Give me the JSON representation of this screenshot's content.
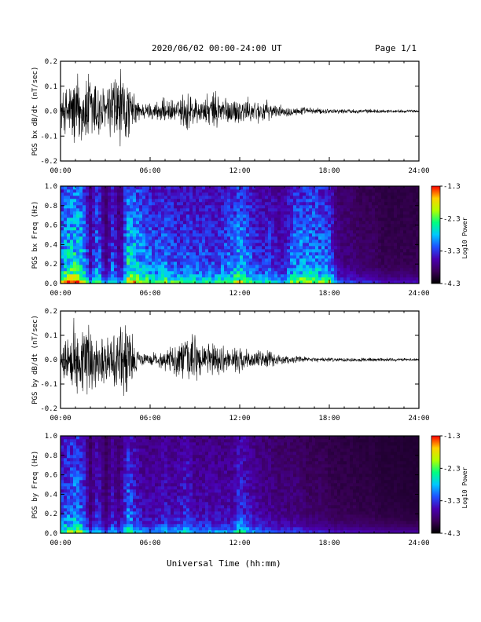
{
  "header": {
    "title": "2020/06/02  00:00-24:00 UT",
    "page": "Page 1/1"
  },
  "footer": {
    "xlabel": "Universal Time (hh:mm)"
  },
  "colors": {
    "spectrogram_scale": [
      "#000000",
      "#3a0058",
      "#4a00b0",
      "#1f4fff",
      "#00c8ff",
      "#00ff80",
      "#b0ff00",
      "#ffd000",
      "#ff0000"
    ]
  },
  "chart_data": [
    {
      "type": "line",
      "ylabel": "PGS bx dB/dt (nT/sec)",
      "xlim": [
        0,
        24
      ],
      "ylim": [
        -0.2,
        0.2
      ],
      "xticks": [
        "00:00",
        "06:00",
        "12:00",
        "18:00",
        "24:00"
      ],
      "yticks": [
        "-0.2",
        "-0.1",
        "0.0",
        "0.1",
        "0.2"
      ],
      "envelope": {
        "t": [
          0,
          0.5,
          1,
          1.5,
          2,
          2.5,
          3,
          3.5,
          4,
          4.5,
          5,
          5.5,
          6,
          6.5,
          7,
          7.5,
          8,
          8.5,
          9,
          9.5,
          10,
          10.5,
          11,
          11.5,
          12,
          12.5,
          13,
          13.5,
          14,
          14.5,
          15,
          16,
          17,
          18,
          19,
          20,
          21,
          22,
          23,
          24
        ],
        "amplitude": [
          0.08,
          0.13,
          0.2,
          0.15,
          0.2,
          0.17,
          0.09,
          0.2,
          0.2,
          0.14,
          0.07,
          0.04,
          0.04,
          0.05,
          0.06,
          0.05,
          0.06,
          0.12,
          0.07,
          0.06,
          0.08,
          0.1,
          0.07,
          0.06,
          0.07,
          0.06,
          0.05,
          0.06,
          0.04,
          0.03,
          0.025,
          0.02,
          0.015,
          0.012,
          0.01,
          0.01,
          0.009,
          0.008,
          0.007,
          0.006
        ]
      }
    },
    {
      "type": "heatmap",
      "ylabel": "PGS bx Freq (Hz)",
      "colorbar_label": "Log10 Power",
      "xlim": [
        0,
        24
      ],
      "ylim": [
        0,
        1
      ],
      "xticks": [
        "00:00",
        "06:00",
        "12:00",
        "18:00",
        "24:00"
      ],
      "yticks": [
        "0.0",
        "0.2",
        "0.4",
        "0.6",
        "0.8",
        "1.0"
      ],
      "color_range": [
        -4.3,
        -1.3
      ],
      "colorbar_ticks": [
        "-1.3",
        "-2.3",
        "-3.3",
        "-4.3"
      ],
      "activity": {
        "t": [
          0,
          0.5,
          1,
          1.5,
          2,
          2.5,
          3,
          3.5,
          4,
          4.5,
          5,
          5.5,
          6,
          6.5,
          7,
          7.5,
          8,
          8.5,
          9,
          9.5,
          10,
          10.5,
          11,
          11.5,
          12,
          12.5,
          13,
          13.5,
          14,
          14.5,
          15,
          15.5,
          16,
          16.5,
          17,
          17.5,
          18,
          18.5,
          19,
          19.5,
          20,
          20.5,
          21,
          21.5,
          22,
          22.5,
          23,
          23.5,
          24
        ],
        "level": [
          0.6,
          0.75,
          0.8,
          0.7,
          0.3,
          0.6,
          0.2,
          0.5,
          0.2,
          0.75,
          0.7,
          0.6,
          0.55,
          0.5,
          0.55,
          0.5,
          0.45,
          0.5,
          0.45,
          0.5,
          0.45,
          0.45,
          0.5,
          0.55,
          0.65,
          0.55,
          0.45,
          0.4,
          0.45,
          0.35,
          0.35,
          0.55,
          0.6,
          0.6,
          0.6,
          0.55,
          0.55,
          0.25,
          0.2,
          0.2,
          0.15,
          0.15,
          0.15,
          0.1,
          0.1,
          0.1,
          0.1,
          0.1,
          0.1
        ]
      }
    },
    {
      "type": "line",
      "ylabel": "PGS by dB/dt (nT/sec)",
      "xlim": [
        0,
        24
      ],
      "ylim": [
        -0.2,
        0.2
      ],
      "xticks": [
        "00:00",
        "06:00",
        "12:00",
        "18:00",
        "24:00"
      ],
      "yticks": [
        "-0.2",
        "-0.1",
        "0.0",
        "0.1",
        "0.2"
      ],
      "envelope": {
        "t": [
          0,
          0.5,
          1,
          1.5,
          2,
          2.5,
          3,
          3.5,
          4,
          4.5,
          5,
          5.5,
          6,
          6.5,
          7,
          7.5,
          8,
          8.5,
          9,
          9.5,
          10,
          10.5,
          11,
          11.5,
          12,
          12.5,
          13,
          13.5,
          14,
          14.5,
          15,
          16,
          17,
          18,
          19,
          20,
          21,
          22,
          23,
          24
        ],
        "amplitude": [
          0.07,
          0.12,
          0.2,
          0.15,
          0.2,
          0.1,
          0.13,
          0.12,
          0.2,
          0.2,
          0.07,
          0.03,
          0.03,
          0.04,
          0.05,
          0.06,
          0.11,
          0.1,
          0.12,
          0.09,
          0.08,
          0.07,
          0.06,
          0.05,
          0.06,
          0.05,
          0.04,
          0.05,
          0.04,
          0.03,
          0.02,
          0.015,
          0.012,
          0.01,
          0.01,
          0.01,
          0.009,
          0.008,
          0.007,
          0.006
        ]
      }
    },
    {
      "type": "heatmap",
      "ylabel": "PGS by Freq (Hz)",
      "colorbar_label": "Log10 Power",
      "xlim": [
        0,
        24
      ],
      "ylim": [
        0,
        1
      ],
      "xticks": [
        "00:00",
        "06:00",
        "12:00",
        "18:00",
        "24:00"
      ],
      "yticks": [
        "0.0",
        "0.2",
        "0.4",
        "0.6",
        "0.8",
        "1.0"
      ],
      "color_range": [
        -4.3,
        -1.3
      ],
      "colorbar_ticks": [
        "-1.3",
        "-2.3",
        "-3.3",
        "-4.3"
      ],
      "activity": {
        "t": [
          0,
          0.5,
          1,
          1.5,
          2,
          2.5,
          3,
          3.5,
          4,
          4.5,
          5,
          5.5,
          6,
          6.5,
          7,
          7.5,
          8,
          8.5,
          9,
          9.5,
          10,
          10.5,
          11,
          11.5,
          12,
          12.5,
          13,
          13.5,
          14,
          14.5,
          15,
          15.5,
          16,
          16.5,
          17,
          17.5,
          18,
          18.5,
          19,
          19.5,
          20,
          20.5,
          21,
          21.5,
          22,
          22.5,
          23,
          23.5,
          24
        ],
        "level": [
          0.45,
          0.55,
          0.6,
          0.5,
          0.2,
          0.4,
          0.15,
          0.35,
          0.2,
          0.55,
          0.4,
          0.3,
          0.3,
          0.3,
          0.35,
          0.3,
          0.35,
          0.4,
          0.3,
          0.3,
          0.3,
          0.3,
          0.3,
          0.3,
          0.45,
          0.35,
          0.3,
          0.25,
          0.25,
          0.2,
          0.2,
          0.2,
          0.2,
          0.15,
          0.15,
          0.15,
          0.12,
          0.1,
          0.1,
          0.1,
          0.08,
          0.08,
          0.08,
          0.06,
          0.06,
          0.06,
          0.05,
          0.05,
          0.05
        ]
      }
    }
  ]
}
